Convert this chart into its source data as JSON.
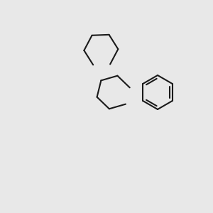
{
  "background_color": "#e8e8e8",
  "bond_color": "#1a1a1a",
  "oxygen_color": "#cc0000",
  "lw": 1.5,
  "figsize": [
    3.0,
    3.0
  ],
  "dpi": 100
}
